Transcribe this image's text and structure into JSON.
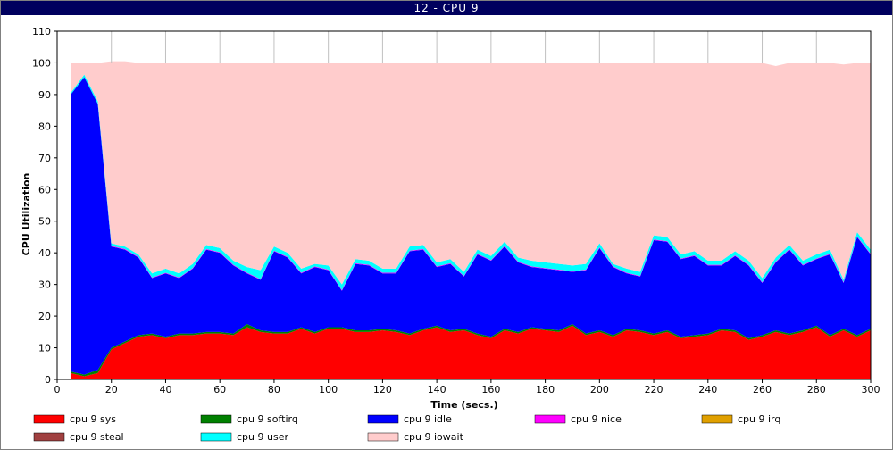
{
  "window": {
    "title": "12 - CPU 9"
  },
  "chart_data": {
    "type": "area",
    "stacked": true,
    "xlabel": "Time (secs.)",
    "ylabel": "CPU Utilization",
    "xlim": [
      0,
      300
    ],
    "ylim": [
      0,
      110
    ],
    "x_ticks": [
      0,
      20,
      40,
      60,
      80,
      100,
      120,
      140,
      160,
      180,
      200,
      220,
      240,
      260,
      280,
      300
    ],
    "y_ticks": [
      0,
      10,
      20,
      30,
      40,
      50,
      60,
      70,
      80,
      90,
      100,
      110
    ],
    "grid": "vertical",
    "legend_position": "bottom",
    "x": [
      5,
      10,
      15,
      20,
      25,
      30,
      35,
      40,
      45,
      50,
      55,
      60,
      65,
      70,
      75,
      80,
      85,
      90,
      95,
      100,
      105,
      110,
      115,
      120,
      125,
      130,
      135,
      140,
      145,
      150,
      155,
      160,
      165,
      170,
      175,
      180,
      185,
      190,
      195,
      200,
      205,
      210,
      215,
      220,
      225,
      230,
      235,
      240,
      245,
      250,
      255,
      260,
      265,
      270,
      275,
      280,
      285,
      290,
      295,
      300
    ],
    "series": [
      {
        "name": "cpu 9 sys",
        "color": "#ff0000",
        "values": [
          2,
          1,
          2,
          9.5,
          11.5,
          13.5,
          14,
          13,
          14,
          14,
          14.5,
          14.5,
          14,
          16.5,
          15,
          14.5,
          14.5,
          16,
          14.5,
          16,
          16,
          15,
          15,
          15.5,
          15,
          14,
          15.5,
          16.5,
          15,
          15.5,
          14,
          13,
          15.5,
          14.5,
          16,
          15.5,
          15,
          17,
          14,
          15,
          13.5,
          15.5,
          15,
          14,
          15,
          13,
          13.5,
          14,
          15.5,
          15,
          12.5,
          13.5,
          15,
          14,
          15,
          16.5,
          13.5,
          15.5,
          13.5,
          15.5
        ]
      },
      {
        "name": "cpu 9 softirq",
        "color": "#008000",
        "values": [
          0.5,
          0.5,
          1,
          0.5,
          0.5,
          0.5,
          0.5,
          0.5,
          0.5,
          0.5,
          0.5,
          0.5,
          0.5,
          1,
          0.5,
          0.5,
          0.5,
          0.5,
          0.5,
          0.5,
          0.5,
          0.5,
          0.5,
          0.5,
          0.5,
          0.5,
          0.5,
          0.5,
          0.5,
          0.5,
          0.5,
          0.5,
          0.5,
          0.5,
          0.5,
          0.5,
          0.5,
          0.5,
          0.5,
          0.5,
          0.5,
          0.5,
          0.5,
          0.5,
          0.5,
          0.5,
          0.5,
          0.5,
          0.5,
          0.5,
          0.5,
          0.5,
          0.5,
          0.5,
          0.5,
          0.5,
          0.5,
          0.5,
          0.5,
          0.5
        ]
      },
      {
        "name": "cpu 9 idle",
        "color": "#0000ff",
        "values": [
          87.5,
          94,
          84,
          32,
          29,
          24.5,
          17.5,
          20,
          17.5,
          20.5,
          26,
          25,
          21.5,
          16,
          16,
          25.5,
          23.5,
          17,
          20.5,
          18,
          11.5,
          21,
          20.5,
          17.5,
          18,
          26,
          25,
          18.5,
          21,
          16.5,
          25,
          24,
          26,
          22,
          19,
          19,
          19,
          16.5,
          20,
          26,
          21.5,
          17.5,
          17,
          29.5,
          28,
          24.5,
          25,
          21.5,
          20,
          23.5,
          23,
          16.5,
          21.5,
          26.5,
          20.5,
          21,
          25.5,
          14.5,
          31,
          23.5
        ]
      },
      {
        "name": "cpu 9 nice",
        "color": "#ff00ff",
        "values": [
          0,
          0,
          0,
          0.2,
          0.2,
          0.2,
          0.2,
          0.2,
          0.2,
          0.2,
          0.2,
          0.2,
          0.2,
          0.2,
          0.2,
          0.2,
          0.2,
          0.2,
          0.2,
          0.2,
          0.2,
          0.2,
          0.2,
          0.2,
          0.2,
          0.2,
          0.2,
          0.2,
          0.2,
          0.2,
          0.2,
          0.2,
          0.2,
          0.2,
          0.2,
          0.2,
          0.2,
          0.2,
          0.2,
          0.2,
          0.2,
          0.2,
          0.2,
          0.2,
          0.2,
          0.2,
          0.2,
          0.2,
          0.2,
          0.2,
          0.2,
          0.2,
          0.2,
          0.2,
          0.2,
          0.2,
          0.2,
          0.2,
          0.2,
          0.2
        ]
      },
      {
        "name": "cpu 9 irq",
        "color": "#e0a000",
        "values": [
          0,
          0,
          0,
          0,
          0,
          0,
          0,
          0,
          0,
          0,
          0,
          0,
          0,
          0,
          0,
          0,
          0,
          0,
          0,
          0,
          0,
          0,
          0,
          0,
          0,
          0,
          0,
          0,
          0,
          0,
          0,
          0,
          0,
          0,
          0,
          0,
          0,
          0,
          0,
          0,
          0,
          0,
          0,
          0,
          0,
          0,
          0,
          0,
          0,
          0,
          0,
          0,
          0,
          0,
          0,
          0,
          0,
          0,
          0,
          0
        ]
      },
      {
        "name": "cpu 9 steal",
        "color": "#a04040",
        "values": [
          0,
          0,
          0,
          0,
          0,
          0,
          0,
          0,
          0,
          0,
          0,
          0,
          0,
          0,
          0,
          0,
          0,
          0,
          0,
          0,
          0,
          0,
          0,
          0,
          0,
          0,
          0,
          0,
          0,
          0,
          0,
          0,
          0,
          0,
          0,
          0,
          0,
          0,
          0,
          0,
          0,
          0,
          0,
          0,
          0,
          0,
          0,
          0,
          0,
          0,
          0,
          0,
          0,
          0,
          0,
          0,
          0,
          0,
          0,
          0
        ]
      },
      {
        "name": "cpu 9 user",
        "color": "#00ffff",
        "values": [
          0.5,
          0.8,
          0.8,
          0.8,
          0.8,
          0.8,
          1.3,
          1.3,
          1.3,
          1.3,
          1.3,
          1.3,
          1.3,
          1.8,
          2.8,
          1.3,
          1.3,
          1.3,
          0.8,
          1.3,
          1.8,
          1.3,
          1.3,
          1.3,
          1.3,
          1.3,
          1.3,
          1.3,
          1.3,
          1.3,
          1.3,
          1.3,
          1.3,
          1.3,
          1.8,
          1.8,
          1.8,
          1.8,
          1.8,
          1.3,
          0.8,
          1.3,
          1.3,
          1.3,
          1.3,
          1.3,
          1.3,
          1.3,
          1.3,
          1.3,
          1.3,
          1.3,
          1.3,
          1.3,
          1.3,
          1.3,
          1.3,
          0.8,
          1.3,
          1.3
        ]
      },
      {
        "name": "cpu 9 iowait",
        "color": "#ffcccc",
        "values": [
          9.5,
          3.7,
          12.2,
          57.5,
          58.5,
          60.5,
          66.5,
          65,
          66.5,
          63.5,
          57.5,
          58.5,
          62.5,
          64.5,
          65.5,
          58,
          60,
          65,
          63.5,
          64,
          70,
          62,
          62.5,
          65,
          65,
          58,
          57.5,
          63,
          62,
          66,
          59,
          61,
          56.5,
          61.5,
          62.5,
          63,
          63.5,
          64,
          63.5,
          57,
          63.5,
          65,
          66,
          54.5,
          55,
          60.5,
          59.5,
          62.5,
          62.5,
          59.5,
          62.5,
          68,
          60.5,
          57.5,
          62.5,
          60.5,
          59,
          68,
          53.5,
          59
        ]
      }
    ]
  }
}
